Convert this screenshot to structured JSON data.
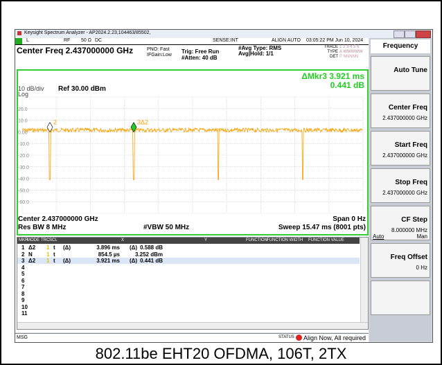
{
  "window_title": "Keysight Spectrum Analyzer - AP2024.2.23,104463/85502,",
  "status_row": {
    "input": "L",
    "rf": "RF",
    "impedance": "50 Ω",
    "coupling": "DC",
    "sense": "SENSE:INT",
    "align": "ALIGN AUTO",
    "datetime": "03:05:22 PM Jun 10, 2024"
  },
  "settings": {
    "center_freq": "Center Freq 2.437000000 GHz",
    "pno": "PNO: Fast",
    "ifgain": "IFGain:Low",
    "trig": "Trig: Free Run",
    "atten": "#Atten: 40 dB",
    "avg_type": "#Avg Type: RMS",
    "avg_hold": "Avg|Hold: 1/1",
    "trace_label": "TRACE",
    "trace_value": "1 2 3 4 5 6",
    "type_label": "TYPE",
    "type_value": "A WWWWW",
    "det_label": "DET",
    "det_value": "P NNNNN"
  },
  "plot": {
    "scale": "10 dB/div",
    "log": "Log",
    "ref": "Ref 30.00 dBm",
    "readout": [
      "ΔMkr3 3.921 ms",
      "0.441 dB"
    ],
    "y_labels": [
      "20.0",
      "10.0",
      "0.00",
      "-10.0",
      "-20.0",
      "-30.0",
      "-40.0",
      "-50.0",
      "-60.0"
    ],
    "markers": [
      "2",
      "3Δ2"
    ],
    "center": "Center 2.437000000 GHz",
    "span": "Span 0 Hz",
    "rbw": "Res BW 8 MHz",
    "vbw": "#VBW 50 MHz",
    "sweep": "Sweep  15.47 ms (8001 pts)"
  },
  "marker_table": {
    "headers": [
      "MKR",
      "MODE",
      "TRC",
      "SCL",
      "X",
      "Y",
      "FUNCTION",
      "FUNCTION WIDTH",
      "FUNCTION VALUE"
    ],
    "rows": [
      {
        "n": "1",
        "mode": "Δ2",
        "trc": "1",
        "scl": "t",
        "xf": "(Δ)",
        "x": "3.896 ms",
        "yf": "(Δ)",
        "y": "0.588 dB"
      },
      {
        "n": "2",
        "mode": "N",
        "trc": "1",
        "scl": "t",
        "x": "854.5 µs",
        "y": "3.252 dBm"
      },
      {
        "n": "3",
        "mode": "Δ2",
        "trc": "1",
        "scl": "t",
        "xf": "(Δ)",
        "x": "3.921 ms",
        "yf": "(Δ)",
        "y": "0.441 dB"
      },
      {
        "n": "4"
      },
      {
        "n": "5"
      },
      {
        "n": "6"
      },
      {
        "n": "7"
      },
      {
        "n": "8"
      },
      {
        "n": "9"
      },
      {
        "n": "10"
      },
      {
        "n": "11"
      }
    ]
  },
  "softkeys": {
    "header": "Frequency",
    "keys": [
      {
        "label": "Auto Tune"
      },
      {
        "label": "Center Freq",
        "value": "2.437000000 GHz"
      },
      {
        "label": "Start Freq",
        "value": "2.437000000 GHz"
      },
      {
        "label": "Stop Freq",
        "value": "2.437000000 GHz"
      },
      {
        "label": "CF Step",
        "value": "8.000000 MHz",
        "auto": "Auto",
        "man": "Man"
      },
      {
        "label": "Freq Offset",
        "value": "0 Hz"
      }
    ]
  },
  "status_bar": {
    "msg": "MSG",
    "status": "STATUS",
    "text": "Align Now, All required"
  },
  "caption": "802.11be EHT20 OFDMA, 106T, 2TX"
}
